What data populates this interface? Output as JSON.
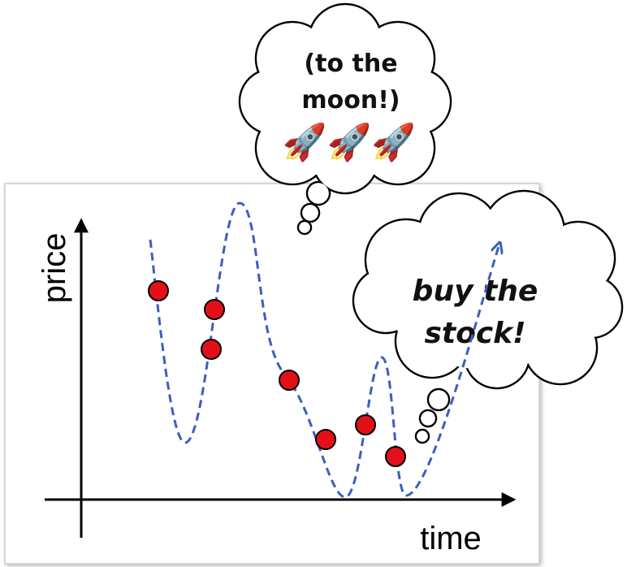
{
  "axes": {
    "y_label": "price",
    "x_label": "time"
  },
  "thought_bubbles": [
    {
      "lines": [
        "(to the",
        "moon!)",
        "🚀🚀🚀"
      ]
    },
    {
      "lines": [
        "buy the",
        "stock!"
      ]
    }
  ]
}
